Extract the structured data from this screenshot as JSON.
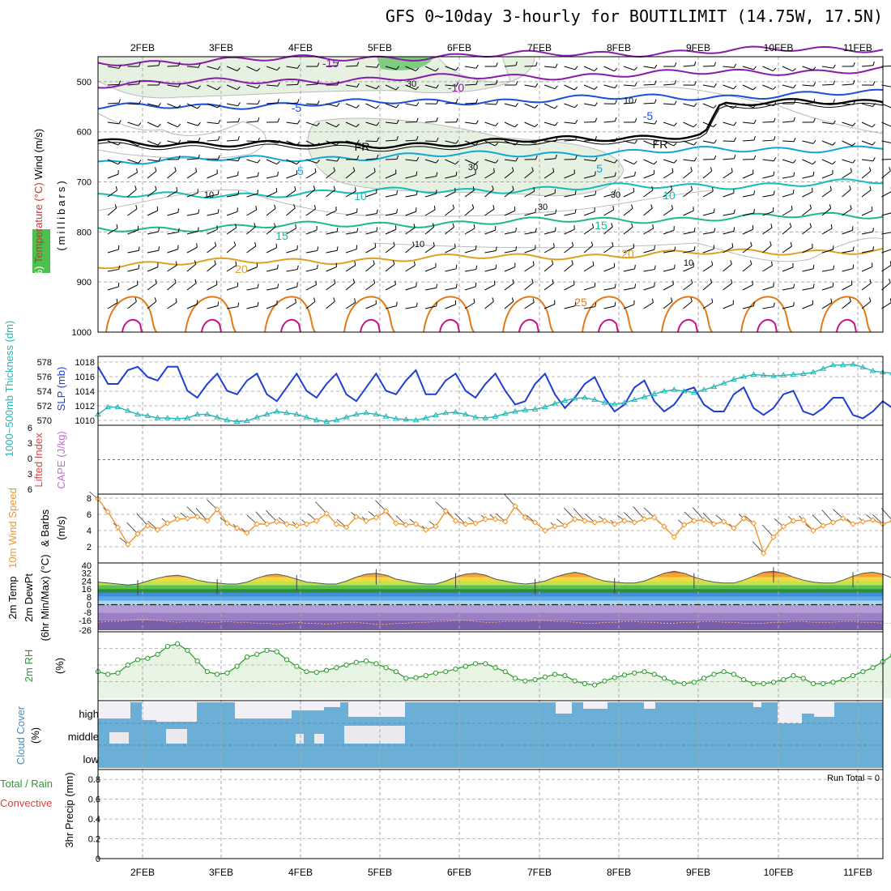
{
  "title": "GFS 0~10day 3-hourly for BOUTILIMIT (14.75W, 17.5N)",
  "dates": [
    "2FEB",
    "3FEB",
    "4FEB",
    "5FEB",
    "6FEB",
    "7FEB",
    "8FEB",
    "9FEB",
    "10FEB",
    "11FEB"
  ],
  "colors": {
    "slp": "#1f3fcf",
    "thickness": "#22b6b6",
    "wind10m": "#f0962a",
    "rh2m": "#2a9a2a",
    "rh2m_fill": "#e8f4e4",
    "cloud": "#6baed6",
    "cloud_clear": "#f3eff7",
    "purple": "#8a1aaa",
    "blue": "#1a4fd6",
    "cyan": "#11a6d8",
    "teal": "#16bcb8",
    "green": "#1eb88a",
    "gold": "#e0a020",
    "orange": "#e37a18",
    "magenta": "#c8148c"
  },
  "chart_data": [
    {
      "type": "contour",
      "panel": "upper-air",
      "ylabel_parts": [
        "RH (%)",
        "Temperature (°C)",
        "Wind (m/s)"
      ],
      "yunit": "(millibars)",
      "ylim": [
        1000,
        450
      ],
      "ticks": [
        "500",
        "600",
        "700",
        "800",
        "900",
        "1000"
      ],
      "contour_labels": [
        "-15",
        "-10",
        "-5",
        "-5",
        "FR",
        "FR",
        "5",
        "5",
        "10",
        "10",
        "15",
        "15",
        "20",
        "20",
        "25"
      ],
      "rh_labels": [
        "30",
        "30",
        "30",
        "10",
        "10",
        "10",
        "10",
        "30"
      ],
      "isotherms": [
        {
          "name": "-15",
          "pressure": 462,
          "color": "purple"
        },
        {
          "name": "-10",
          "pressure": 505,
          "color": "purple"
        },
        {
          "name": "-5",
          "pressure": 552,
          "color": "blue"
        },
        {
          "name": "FR",
          "pressure": 610,
          "color": "black"
        },
        {
          "name": "5",
          "pressure": 660,
          "color": "cyan"
        },
        {
          "name": "10",
          "pressure": 730,
          "color": "teal"
        },
        {
          "name": "15",
          "pressure": 795,
          "color": "green"
        },
        {
          "name": "20",
          "pressure": 865,
          "color": "gold"
        }
      ]
    },
    {
      "type": "line",
      "panel": "thickness-slp",
      "ylabel_left": "1000~500mb Thickness (dm)",
      "ylabel_right": "SLP (mb)",
      "left_ticks": [
        "578",
        "576",
        "574",
        "572",
        "570"
      ],
      "right_ticks": [
        "1018",
        "1016",
        "1014",
        "1012",
        "1010"
      ],
      "series": [
        {
          "name": "SLP (mb)",
          "axis": "right",
          "ylim": [
            1009,
            1019
          ],
          "values": [
            1017.5,
            1015,
            1015,
            1017,
            1017.5,
            1016,
            1015.5,
            1017.5,
            1017.5,
            1014,
            1013,
            1015,
            1016.5,
            1014,
            1013.5,
            1015.5,
            1016.5,
            1013.5,
            1012.5,
            1014.5,
            1016.5,
            1014,
            1013,
            1015,
            1016.5,
            1013.5,
            1012.5,
            1014.5,
            1016.5,
            1014,
            1013.5,
            1015.5,
            1017,
            1013.5,
            1013.5,
            1015.5,
            1016.5,
            1014,
            1013,
            1015,
            1016.5,
            1014,
            1012,
            1012.5,
            1015,
            1016.5,
            1013.5,
            1011.5,
            1013,
            1015,
            1016,
            1013,
            1011,
            1012,
            1014.5,
            1015.5,
            1012.5,
            1011,
            1012,
            1014,
            1014.5,
            1012,
            1011,
            1011,
            1013.5,
            1014.5,
            1011.5,
            1010.5,
            1011.5,
            1013.5,
            1014,
            1011,
            1010.5,
            1011.5,
            1013,
            1013,
            1010.5,
            1010,
            1011,
            1012.5,
            1011.5
          ]
        },
        {
          "name": "1000~500mb Thickness (dm)",
          "axis": "left",
          "ylim": [
            569.5,
            579
          ],
          "values": [
            571,
            572,
            572,
            571.5,
            571,
            570.8,
            570.5,
            570.5,
            570.4,
            570.5,
            571,
            571,
            570.6,
            570.2,
            570,
            570.1,
            570.6,
            571,
            571.4,
            571.2,
            571,
            570.6,
            570.2,
            570,
            570.2,
            570.6,
            571,
            571.2,
            571,
            570.7,
            570.4,
            570.3,
            570.2,
            570.5,
            570.9,
            571.2,
            571.3,
            571,
            570.6,
            570.5,
            570.7,
            571.1,
            571.4,
            571.6,
            571.7,
            572,
            572.5,
            572.9,
            573.2,
            573.3,
            573,
            572.6,
            572.4,
            572.6,
            573,
            573.4,
            573.8,
            574.2,
            574.4,
            574.2,
            574,
            574.4,
            574.8,
            575.3,
            575.8,
            576.2,
            576.5,
            576.4,
            576.3,
            576.4,
            576.5,
            576.6,
            576.8,
            577.3,
            577.8,
            577.8,
            577.9,
            577.5,
            577,
            576.8,
            576.7
          ]
        }
      ]
    },
    {
      "type": "line",
      "panel": "stability",
      "ylabel_left": "Lifted Index",
      "ylabel_right": "CAPE (J/kg)",
      "left_ticks": [
        "6",
        "3",
        "0",
        "3",
        "6"
      ],
      "ylim": [
        -6,
        6
      ],
      "series": [
        {
          "name": "Lifted Index",
          "values": [
            0
          ]
        }
      ]
    },
    {
      "type": "line",
      "panel": "wind10m",
      "ylabel_parts": [
        "10m Wind Speed",
        "& Barbs",
        "(m/s)"
      ],
      "ticks": [
        "8",
        "6",
        "4",
        "2"
      ],
      "ylim": [
        0,
        8.5
      ],
      "series": [
        {
          "name": "Speed",
          "values": [
            7.9,
            6.3,
            4.4,
            2.3,
            3.6,
            4.6,
            4.1,
            4.9,
            5.4,
            5.5,
            5.7,
            5.2,
            6.6,
            4.9,
            4.3,
            3.7,
            4.8,
            4.8,
            5.1,
            4.8,
            4.6,
            4.8,
            5.2,
            6.1,
            4.8,
            4.4,
            5.7,
            5.2,
            5.6,
            6.4,
            4.9,
            4.7,
            4.8,
            4.1,
            4.5,
            6.4,
            5.2,
            4.8,
            4.9,
            5.4,
            5.4,
            5.1,
            7.0,
            5.6,
            5.0,
            4.0,
            4.5,
            4.6,
            5.4,
            5.2,
            5.0,
            5.2,
            4.8,
            5.2,
            5.0,
            5.4,
            5.6,
            4.5,
            3.2,
            4.7,
            5.2,
            5.3,
            4.8,
            5.1,
            4.3,
            5.5,
            4.9,
            1.2,
            3.2,
            4.5,
            5.2,
            5.3,
            4.0,
            4.6,
            5.0,
            5.5,
            4.8,
            5.1,
            5.3,
            4.8,
            5.2
          ]
        }
      ]
    },
    {
      "type": "area",
      "panel": "temp2m",
      "ylabel_parts": [
        "2m Temp",
        "2m DewPt",
        "(6hr Min/Max) (°C)"
      ],
      "ticks": [
        "40",
        "32",
        "24",
        "16",
        "8",
        "0",
        "-8",
        "-16",
        "-26"
      ],
      "ylim": [
        -26,
        40
      ],
      "series": [
        {
          "name": "2m Temp",
          "values": [
            23,
            22,
            21,
            20,
            21,
            24,
            27,
            29,
            30,
            28,
            25,
            23,
            22,
            21,
            21,
            23,
            27,
            30,
            31,
            29,
            26,
            23,
            22,
            21,
            21,
            24,
            28,
            31,
            32,
            30,
            26,
            24,
            22,
            21,
            21,
            24,
            28,
            31,
            32,
            30,
            26,
            24,
            22,
            21,
            22,
            24,
            28,
            31,
            33,
            31,
            27,
            24,
            23,
            22,
            22,
            24,
            28,
            32,
            34,
            32,
            28,
            25,
            23,
            22,
            22,
            25,
            29,
            33,
            34,
            32,
            28,
            25,
            23,
            22,
            22,
            25,
            29,
            32,
            33,
            31,
            27
          ]
        },
        {
          "name": "2m DewPt",
          "values": [
            -18,
            -17,
            -17,
            -16,
            -15,
            -15,
            -16,
            -17,
            -18,
            -17,
            -17,
            -18,
            -18,
            -17,
            -18,
            -18,
            -19,
            -19,
            -20,
            -19,
            -18,
            -19,
            -19,
            -20,
            -19,
            -18,
            -18,
            -19,
            -20,
            -20,
            -19,
            -19,
            -18,
            -18,
            -17,
            -17,
            -16,
            -16,
            -17,
            -18,
            -18,
            -17,
            -17,
            -17,
            -16,
            -16,
            -17,
            -17,
            -18,
            -19,
            -19,
            -18,
            -18,
            -17,
            -17,
            -18,
            -18,
            -19,
            -19,
            -18,
            -18,
            -17,
            -17,
            -18,
            -18,
            -19,
            -19,
            -19,
            -18,
            -18,
            -17,
            -17,
            -18,
            -18,
            -18,
            -17,
            -17,
            -18,
            -18,
            -19,
            -19
          ]
        }
      ]
    },
    {
      "type": "area",
      "panel": "rh2m",
      "ylabel_parts": [
        "2m RH",
        "(%)"
      ],
      "ylim": [
        0,
        100
      ],
      "series": [
        {
          "name": "2m RH",
          "values": [
            40,
            36,
            38,
            50,
            58,
            60,
            66,
            78,
            82,
            72,
            56,
            40,
            36,
            38,
            48,
            62,
            66,
            72,
            70,
            58,
            48,
            40,
            39,
            42,
            46,
            50,
            54,
            56,
            52,
            46,
            40,
            30,
            31,
            34,
            38,
            40,
            44,
            48,
            52,
            52,
            46,
            40,
            30,
            26,
            28,
            32,
            36,
            34,
            26,
            22,
            20,
            26,
            31,
            35,
            38,
            40,
            36,
            30,
            24,
            22,
            24,
            30,
            36,
            40,
            36,
            28,
            22,
            22,
            24,
            28,
            34,
            30,
            22,
            22,
            24,
            28,
            34,
            40,
            46,
            55,
            65
          ]
        }
      ]
    },
    {
      "type": "heatmap",
      "panel": "cloud",
      "ylabel_parts": [
        "Cloud Cover",
        "(%)"
      ],
      "rows": [
        "high",
        "middle",
        "low"
      ]
    },
    {
      "type": "bar",
      "panel": "precip",
      "ylabel_parts": [
        "Total / Rain",
        "Convective",
        "3hr Precip (mm)"
      ],
      "ticks": [
        "0.8",
        "0.6",
        "0.4",
        "0.2",
        "0"
      ],
      "ylim": [
        0,
        0.9
      ],
      "annotation": "Run Total = 0",
      "values": [
        0
      ]
    }
  ]
}
